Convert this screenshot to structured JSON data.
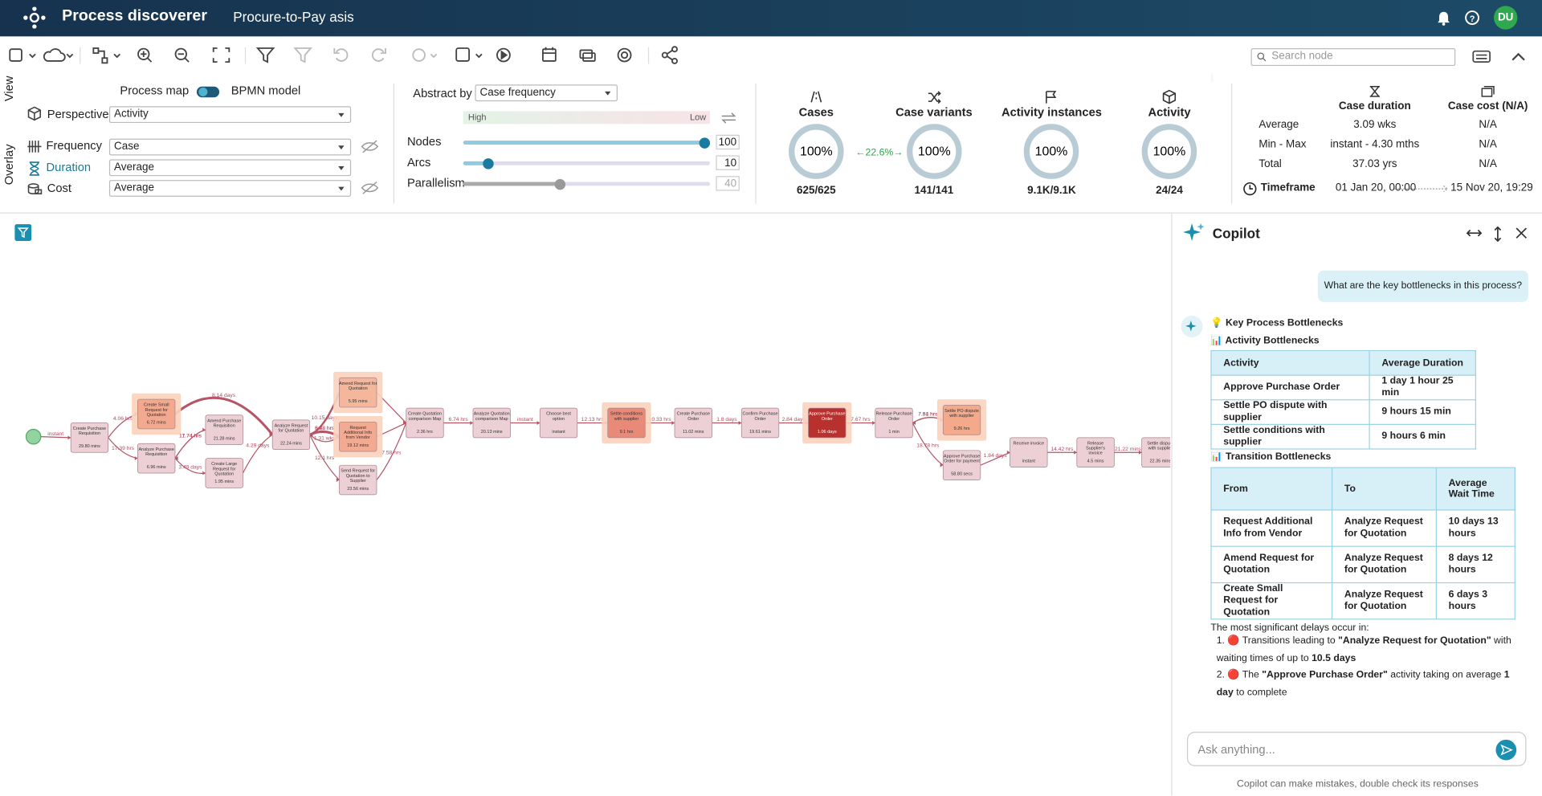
{
  "header": {
    "app_title": "Process discoverer",
    "project": "Procure-to-Pay asis",
    "avatar": "DU"
  },
  "toolbar": {
    "search_placeholder": "Search node"
  },
  "view_panel": {
    "view_label": "View",
    "process_map": "Process map",
    "bpmn_model": "BPMN model",
    "overlay_label": "Overlay",
    "perspective": {
      "label": "Perspective",
      "value": "Activity"
    },
    "frequency": {
      "label": "Frequency",
      "value": "Case"
    },
    "duration": {
      "label": "Duration",
      "value": "Average"
    },
    "cost": {
      "label": "Cost",
      "value": "Average"
    }
  },
  "abstraction": {
    "label": "Abstract by",
    "value": "Case frequency",
    "high": "High",
    "low": "Low",
    "sliders": [
      {
        "label": "Nodes",
        "value": 100
      },
      {
        "label": "Arcs",
        "value": 10
      },
      {
        "label": "Parallelism",
        "value": 40
      }
    ]
  },
  "kpis": [
    {
      "title": "Cases",
      "percent": "100%",
      "count": "625/625"
    },
    {
      "title": "Case variants",
      "percent": "100%",
      "count": "141/141"
    },
    {
      "title": "Activity instances",
      "percent": "100%",
      "count": "9.1K/9.1K"
    },
    {
      "title": "Activity",
      "percent": "100%",
      "count": "24/24"
    }
  ],
  "cases_change": "22.6%",
  "stats": {
    "columns": [
      "Case duration",
      "Case cost (N/A)"
    ],
    "rows": [
      {
        "label": "Average",
        "values": [
          "3.09 wks",
          "N/A"
        ]
      },
      {
        "label": "Min - Max",
        "values": [
          "instant - 4.30 mths",
          "N/A"
        ]
      },
      {
        "label": "Total",
        "values": [
          "37.03 yrs",
          "N/A"
        ]
      }
    ],
    "timeframe": {
      "label": "Timeframe",
      "start": "01 Jan 20, 00:00",
      "end": "15 Nov 20, 19:29"
    }
  },
  "process_map": {
    "nodes": [
      {
        "label": "Create Purchase Requisition",
        "duration": "29.80 mins",
        "color": "#ecd0d6"
      },
      {
        "label": "Create Small Request for Quotation",
        "duration": "6.72 mins",
        "color": "#f2a98f",
        "highlighted": true
      },
      {
        "label": "Analyze Purchase Requisition",
        "duration": "6.96 mins",
        "color": "#ecd0d6"
      },
      {
        "label": "Amend Purchase Requisition",
        "duration": "21.28 mins",
        "color": "#ecd0d6"
      },
      {
        "label": "Create Large Request for Quotation",
        "duration": "1.95 mins",
        "color": "#ecd0d6"
      },
      {
        "label": "Analyze Request for Quotation",
        "duration": "22.24 mins",
        "color": "#ecd0d6"
      },
      {
        "label": "Amend Request for Quotation",
        "duration": "5.95 mins",
        "color": "#f4b79c",
        "highlighted": true
      },
      {
        "label": "Request Additional Info from Vendor",
        "duration": "19.12 mins",
        "color": "#f2ab92",
        "highlighted": true
      },
      {
        "label": "Send Request for Quotation to Supplier",
        "duration": "23.56 mins",
        "color": "#ecd0d6"
      },
      {
        "label": "Create Quotation comparison Map",
        "duration": "2.36 hrs",
        "color": "#ecd0d6"
      },
      {
        "label": "Analyze Quotation comparison Map",
        "duration": "20.13 mins",
        "color": "#ecd0d6"
      },
      {
        "label": "Choose best option",
        "duration": "instant",
        "color": "#ecd0d6"
      },
      {
        "label": "Settle conditions with supplier",
        "duration": "9.1 hrs",
        "color": "#e98a78",
        "highlighted": true
      },
      {
        "label": "Create Purchase Order",
        "duration": "11.02 mins",
        "color": "#ecd0d6"
      },
      {
        "label": "Confirm Purchase Order",
        "duration": "19.61 mins",
        "color": "#ecd0d6"
      },
      {
        "label": "Approve Purchase Order",
        "duration": "1.06 days",
        "color": "#b8312f",
        "highlighted": true
      },
      {
        "label": "Release Purchase Order",
        "duration": "1 min",
        "color": "#ecd0d6"
      },
      {
        "label": "Settle PO dispute with supplier",
        "duration": "9.26 hrs",
        "color": "#f3a98a",
        "highlighted": true
      },
      {
        "label": "Approve Purchase Order for payment",
        "duration": "58.80 secs",
        "color": "#ecd0d6"
      },
      {
        "label": "Receive invoice",
        "duration": "instant",
        "color": "#ecd0d6"
      },
      {
        "label": "Release Supplier's invoice",
        "duration": "4.5 mins",
        "color": "#ecd0d6"
      },
      {
        "label": "Settle dispute with supplier",
        "duration": "22.35 mins",
        "color": "#ecd0d6"
      }
    ],
    "edge_labels": [
      "instant",
      "4.06 hrs",
      "17.39 hrs",
      "8.14 days",
      "11.74 hrs",
      "17.74 hrs",
      "3.49 days",
      "4.29 days",
      "10.15 days",
      "3.22 hrs",
      "6.48 hrs",
      "1.31 wks",
      "12.1 hrs",
      "7.58 hrs",
      "6.74 hrs",
      "instant",
      "12.13 hrs",
      "10.33 hrs",
      "1.8 days",
      "2.84 days",
      "7.67 hrs",
      "7.81 hrs",
      "7.54 hrs",
      "18.78 hrs",
      "1.84 days",
      "14.42 hrs",
      "21.22 mins"
    ]
  },
  "copilot": {
    "title": "Copilot",
    "question": "What are the key bottlenecks in this process?",
    "heading": "💡 Key Process Bottlenecks",
    "activity_heading": "📊 Activity Bottlenecks",
    "activity_table": {
      "columns": [
        "Activity",
        "Average Duration"
      ],
      "rows": [
        [
          "Approve Purchase Order",
          "1 day 1 hour 25 min"
        ],
        [
          "Settle PO dispute with supplier",
          "9 hours 15 min"
        ],
        [
          "Settle conditions with supplier",
          "9 hours 6 min"
        ]
      ]
    },
    "transition_heading": "📊 Transition Bottlenecks",
    "transition_table": {
      "columns": [
        "From",
        "To",
        "Average Wait Time"
      ],
      "rows": [
        [
          "Request Additional Info from Vendor",
          "Analyze Request for Quotation",
          "10 days 13 hours"
        ],
        [
          "Amend Request for Quotation",
          "Analyze Request for Quotation",
          "8 days 12 hours"
        ],
        [
          "Create Small Request for Quotation",
          "Analyze Request for Quotation",
          "6 days 3 hours"
        ]
      ]
    },
    "summary": "The most significant delays occur in:",
    "findings": [
      [
        {
          "text": "🔴 Transitions leading to "
        },
        {
          "text": "\"Analyze Request for Quotation\"",
          "bold": true
        },
        {
          "text": " with waiting times of up to "
        },
        {
          "text": "10.5 days",
          "bold": true
        }
      ],
      [
        {
          "text": "🔴 The "
        },
        {
          "text": "\"Approve Purchase Order\"",
          "bold": true
        },
        {
          "text": " activity taking on average "
        },
        {
          "text": "1 day",
          "bold": true
        },
        {
          "text": " to complete"
        }
      ]
    ],
    "input_placeholder": "Ask anything...",
    "disclaimer": "Copilot can make mistakes, double check its responses"
  }
}
